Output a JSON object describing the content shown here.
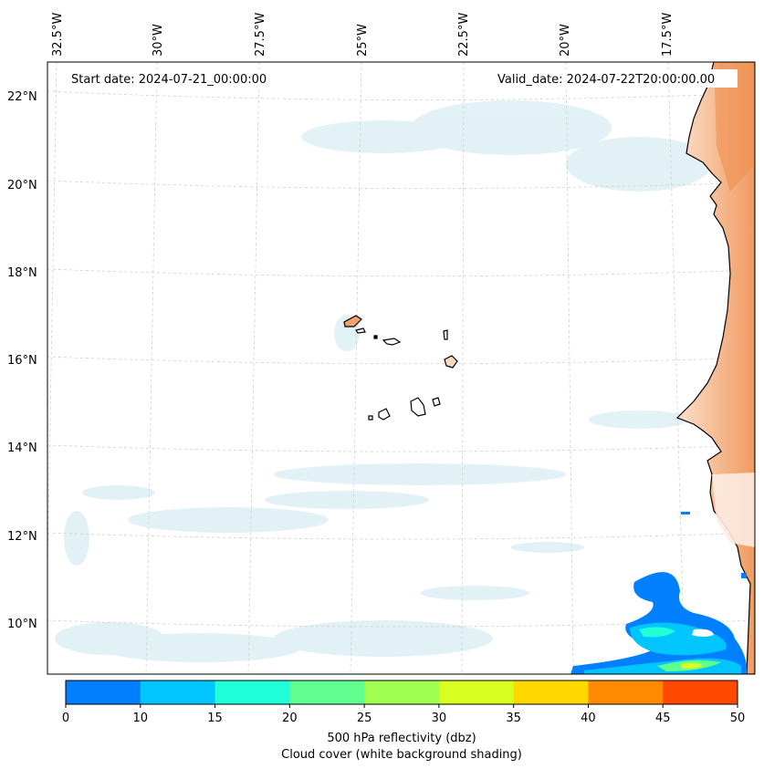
{
  "header": {
    "start_date": "Start date: 2024-07-21_00:00:00",
    "valid_date": "Valid_date: 2024-07-22T20:00:00.00"
  },
  "lon_labels": [
    "32.5°W",
    "30°W",
    "27.5°W",
    "25°W",
    "22.5°W",
    "20°W",
    "17.5°W"
  ],
  "lat_labels": [
    "22°N",
    "20°N",
    "18°N",
    "16°N",
    "14°N",
    "12°N",
    "10°N"
  ],
  "colorbar": {
    "ticks": [
      "0",
      "10",
      "15",
      "20",
      "25",
      "30",
      "35",
      "40",
      "45",
      "50"
    ],
    "values": [
      0,
      10,
      15,
      20,
      25,
      30,
      35,
      40,
      45,
      50
    ],
    "colors": [
      "#0080ff",
      "#00c5ff",
      "#20ffd8",
      "#60ff90",
      "#a0ff50",
      "#d8ff20",
      "#ffd800",
      "#ff8a00",
      "#ff4a00"
    ],
    "label_line1": "500 hPa reflectivity (dbz)",
    "label_line2": "Cloud cover (white background shading)"
  },
  "colors": {
    "land_fill": "#f3a26a",
    "cloud_fill": "#d7ecf3",
    "coast": "#000000",
    "grid": "#c8c8c8"
  }
}
